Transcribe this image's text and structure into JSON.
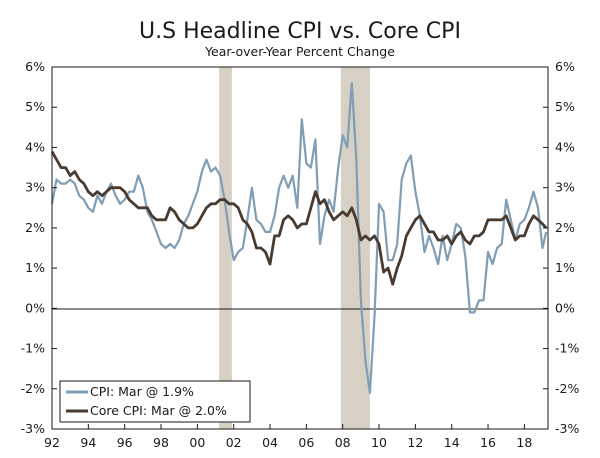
{
  "chart_data": {
    "type": "line",
    "title": "U.S Headline CPI vs. Core CPI",
    "subtitle": "Year-over-Year Percent Change",
    "xlabel": "",
    "ylabel": "",
    "xlim": [
      1992.0,
      2019.3
    ],
    "ylim": [
      -3,
      6
    ],
    "y_ticks": [
      -3,
      -2,
      -1,
      0,
      1,
      2,
      3,
      4,
      5,
      6
    ],
    "y_tick_labels": [
      "-3%",
      "-2%",
      "-1%",
      "0%",
      "1%",
      "2%",
      "3%",
      "4%",
      "5%",
      "6%"
    ],
    "x_ticks": [
      1992,
      1994,
      1996,
      1998,
      2000,
      2002,
      2004,
      2006,
      2008,
      2010,
      2012,
      2014,
      2016,
      2018
    ],
    "x_tick_labels": [
      "92",
      "94",
      "96",
      "98",
      "00",
      "02",
      "04",
      "06",
      "08",
      "10",
      "12",
      "14",
      "16",
      "18"
    ],
    "recessions": [
      [
        2001.2,
        2001.9
      ],
      [
        2007.9,
        2009.5
      ]
    ],
    "grid": false,
    "legend_position": "bottom-left",
    "series": [
      {
        "name": "CPI: Mar @ 1.9%",
        "color": "#7f9db5",
        "x": [
          1992.0,
          1992.25,
          1992.5,
          1992.75,
          1993.0,
          1993.25,
          1993.5,
          1993.75,
          1994.0,
          1994.25,
          1994.5,
          1994.75,
          1995.0,
          1995.25,
          1995.5,
          1995.75,
          1996.0,
          1996.25,
          1996.5,
          1996.75,
          1997.0,
          1997.25,
          1997.5,
          1997.75,
          1998.0,
          1998.25,
          1998.5,
          1998.75,
          1999.0,
          1999.25,
          1999.5,
          1999.75,
          2000.0,
          2000.25,
          2000.5,
          2000.75,
          2001.0,
          2001.25,
          2001.5,
          2001.75,
          2002.0,
          2002.25,
          2002.5,
          2002.75,
          2003.0,
          2003.25,
          2003.5,
          2003.75,
          2004.0,
          2004.25,
          2004.5,
          2004.75,
          2005.0,
          2005.25,
          2005.5,
          2005.75,
          2006.0,
          2006.25,
          2006.5,
          2006.75,
          2007.0,
          2007.25,
          2007.5,
          2007.75,
          2008.0,
          2008.25,
          2008.5,
          2008.75,
          2009.0,
          2009.25,
          2009.5,
          2009.75,
          2010.0,
          2010.25,
          2010.5,
          2010.75,
          2011.0,
          2011.25,
          2011.5,
          2011.75,
          2012.0,
          2012.25,
          2012.5,
          2012.75,
          2013.0,
          2013.25,
          2013.5,
          2013.75,
          2014.0,
          2014.25,
          2014.5,
          2014.75,
          2015.0,
          2015.25,
          2015.5,
          2015.75,
          2016.0,
          2016.25,
          2016.5,
          2016.75,
          2017.0,
          2017.25,
          2017.5,
          2017.75,
          2018.0,
          2018.25,
          2018.5,
          2018.75,
          2019.0,
          2019.2
        ],
        "values": [
          2.6,
          3.2,
          3.1,
          3.1,
          3.2,
          3.1,
          2.8,
          2.7,
          2.5,
          2.4,
          2.8,
          2.6,
          2.9,
          3.1,
          2.8,
          2.6,
          2.7,
          2.9,
          2.9,
          3.3,
          3.0,
          2.4,
          2.2,
          1.9,
          1.6,
          1.5,
          1.6,
          1.5,
          1.7,
          2.1,
          2.3,
          2.6,
          2.9,
          3.4,
          3.7,
          3.4,
          3.5,
          3.3,
          2.7,
          1.9,
          1.2,
          1.4,
          1.5,
          2.2,
          3.0,
          2.2,
          2.1,
          1.9,
          1.9,
          2.3,
          3.0,
          3.3,
          3.0,
          3.3,
          2.5,
          4.7,
          3.6,
          3.5,
          4.2,
          1.6,
          2.3,
          2.7,
          2.4,
          3.5,
          4.3,
          4.0,
          5.6,
          3.7,
          0.2,
          -1.3,
          -2.1,
          -0.2,
          2.6,
          2.4,
          1.2,
          1.2,
          1.6,
          3.2,
          3.6,
          3.8,
          2.9,
          2.3,
          1.4,
          1.8,
          1.5,
          1.1,
          1.8,
          1.2,
          1.6,
          2.1,
          2.0,
          1.3,
          -0.1,
          -0.1,
          0.2,
          0.2,
          1.4,
          1.1,
          1.5,
          1.6,
          2.7,
          2.2,
          1.7,
          2.1,
          2.2,
          2.5,
          2.9,
          2.5,
          1.5,
          1.9
        ]
      },
      {
        "name": "Core CPI: Mar @ 2.0%",
        "color": "#4a3b30",
        "x": [
          1992.0,
          1992.25,
          1992.5,
          1992.75,
          1993.0,
          1993.25,
          1993.5,
          1993.75,
          1994.0,
          1994.25,
          1994.5,
          1994.75,
          1995.0,
          1995.25,
          1995.5,
          1995.75,
          1996.0,
          1996.25,
          1996.5,
          1996.75,
          1997.0,
          1997.25,
          1997.5,
          1997.75,
          1998.0,
          1998.25,
          1998.5,
          1998.75,
          1999.0,
          1999.25,
          1999.5,
          1999.75,
          2000.0,
          2000.25,
          2000.5,
          2000.75,
          2001.0,
          2001.25,
          2001.5,
          2001.75,
          2002.0,
          2002.25,
          2002.5,
          2002.75,
          2003.0,
          2003.25,
          2003.5,
          2003.75,
          2004.0,
          2004.25,
          2004.5,
          2004.75,
          2005.0,
          2005.25,
          2005.5,
          2005.75,
          2006.0,
          2006.25,
          2006.5,
          2006.75,
          2007.0,
          2007.25,
          2007.5,
          2007.75,
          2008.0,
          2008.25,
          2008.5,
          2008.75,
          2009.0,
          2009.25,
          2009.5,
          2009.75,
          2010.0,
          2010.25,
          2010.5,
          2010.75,
          2011.0,
          2011.25,
          2011.5,
          2011.75,
          2012.0,
          2012.25,
          2012.5,
          2012.75,
          2013.0,
          2013.25,
          2013.5,
          2013.75,
          2014.0,
          2014.25,
          2014.5,
          2014.75,
          2015.0,
          2015.25,
          2015.5,
          2015.75,
          2016.0,
          2016.25,
          2016.5,
          2016.75,
          2017.0,
          2017.25,
          2017.5,
          2017.75,
          2018.0,
          2018.25,
          2018.5,
          2018.75,
          2019.0,
          2019.2
        ],
        "values": [
          3.9,
          3.7,
          3.5,
          3.5,
          3.3,
          3.4,
          3.2,
          3.1,
          2.9,
          2.8,
          2.9,
          2.8,
          2.9,
          3.0,
          3.0,
          3.0,
          2.9,
          2.7,
          2.6,
          2.5,
          2.5,
          2.5,
          2.3,
          2.2,
          2.2,
          2.2,
          2.5,
          2.4,
          2.2,
          2.1,
          2.0,
          2.0,
          2.1,
          2.3,
          2.5,
          2.6,
          2.6,
          2.7,
          2.7,
          2.6,
          2.6,
          2.5,
          2.2,
          2.1,
          1.9,
          1.5,
          1.5,
          1.4,
          1.1,
          1.8,
          1.8,
          2.2,
          2.3,
          2.2,
          2.0,
          2.1,
          2.1,
          2.5,
          2.9,
          2.6,
          2.7,
          2.4,
          2.2,
          2.3,
          2.4,
          2.3,
          2.5,
          2.2,
          1.7,
          1.8,
          1.7,
          1.8,
          1.6,
          0.9,
          1.0,
          0.6,
          1.0,
          1.3,
          1.8,
          2.0,
          2.2,
          2.3,
          2.1,
          1.9,
          1.9,
          1.7,
          1.7,
          1.8,
          1.6,
          1.8,
          1.9,
          1.7,
          1.6,
          1.8,
          1.8,
          1.9,
          2.2,
          2.2,
          2.2,
          2.2,
          2.3,
          2.0,
          1.7,
          1.8,
          1.8,
          2.1,
          2.3,
          2.2,
          2.1,
          2.0
        ]
      }
    ]
  }
}
